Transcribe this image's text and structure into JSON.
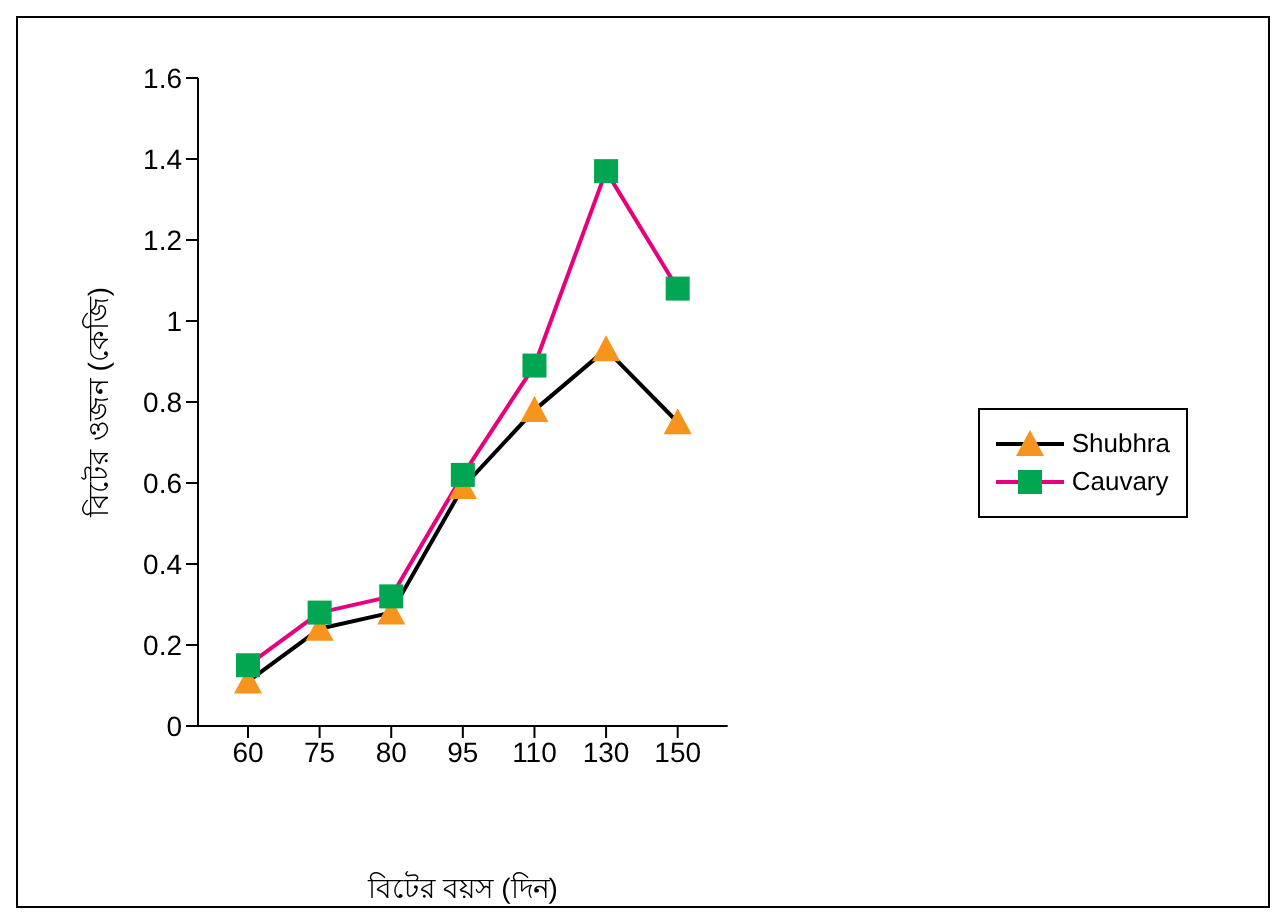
{
  "chart_data": {
    "type": "line",
    "xlabel": "বিটের বয়স (দিন)",
    "ylabel": "বিটের ওজন (কেজি)",
    "categories": [
      "60",
      "75",
      "80",
      "95",
      "110",
      "130",
      "150"
    ],
    "series": [
      {
        "name": "Shubhra",
        "color": "#000000",
        "marker": "triangle",
        "colors": [
          "#f7941d",
          "#f7941d",
          "#f7941d",
          "#f7941d",
          "#f7941d",
          "#f7941d",
          "#f7941d"
        ],
        "values": [
          0.11,
          0.24,
          0.28,
          0.59,
          0.78,
          0.93,
          0.75
        ]
      },
      {
        "name": "Cauvary",
        "color": "#e6007e",
        "marker": "square",
        "colors": [
          "#00a651",
          "#00a651",
          "#00a651",
          "#00a651",
          "#00a651",
          "#00a651",
          "#00a651"
        ],
        "values": [
          0.15,
          0.28,
          0.32,
          0.62,
          0.89,
          1.37,
          1.08
        ]
      }
    ],
    "ylim": [
      0,
      1.6
    ],
    "yticks": [
      0,
      0.2,
      0.4,
      0.6,
      0.8,
      1,
      1.2,
      1.4,
      1.6
    ],
    "grid": false,
    "legend": "right",
    "line_style": "solid"
  }
}
